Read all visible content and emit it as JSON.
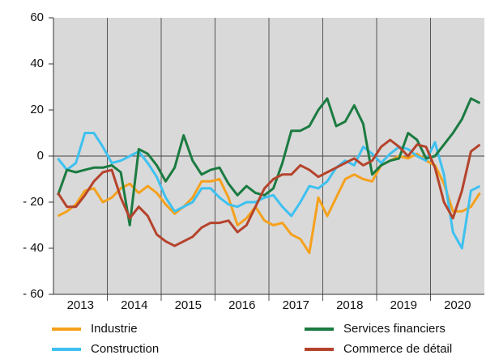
{
  "chart_data": {
    "type": "line",
    "categories": [
      "2013",
      "2014",
      "2015",
      "2016",
      "2017",
      "2018",
      "2019",
      "2020"
    ],
    "ylim": [
      -60,
      60
    ],
    "yticks": [
      {
        "value": 60,
        "label": "60"
      },
      {
        "value": 40,
        "label": "40"
      },
      {
        "value": 20,
        "label": "20"
      },
      0,
      {
        "value": -20,
        "label": "- 20"
      },
      {
        "value": -40,
        "label": "- 40"
      },
      {
        "value": -60,
        "label": "- 60"
      }
    ],
    "series": [
      {
        "name": "Industrie",
        "color": "#f5a11c",
        "values": [
          [
            -26,
            -24,
            -21,
            -15,
            -14,
            -20
          ],
          [
            -18,
            -14,
            -12,
            -16,
            -13,
            -16
          ],
          [
            -21,
            -25,
            -22,
            -18,
            -11,
            -11
          ],
          [
            -10,
            -18,
            -30,
            -27,
            -22,
            -28
          ],
          [
            -30,
            -29,
            -34,
            -36,
            -42,
            -18
          ],
          [
            -26,
            -18,
            -10,
            -8,
            -10,
            -11
          ],
          [
            -4,
            -2,
            0,
            -1,
            1,
            -2
          ],
          [
            -4,
            -12,
            -24,
            -24,
            -22,
            -16
          ]
        ]
      },
      {
        "name": "Construction",
        "color": "#3ec1f0",
        "values": [
          [
            -1,
            -6,
            -3,
            10,
            10,
            4
          ],
          [
            -3,
            -2,
            0,
            2,
            -3,
            -9
          ],
          [
            -18,
            -24,
            -22,
            -20,
            -14,
            -14
          ],
          [
            -18,
            -21,
            -22,
            -20,
            -20,
            -18
          ],
          [
            -17,
            -22,
            -26,
            -20,
            -13,
            -14
          ],
          [
            -11,
            -5,
            -2,
            -4,
            4,
            1
          ],
          [
            -3,
            1,
            4,
            3,
            0,
            -2
          ],
          [
            6,
            -8,
            -33,
            -40,
            -15,
            -13
          ]
        ]
      },
      {
        "name": "Services financiers",
        "color": "#1b7b41",
        "values": [
          [
            -17,
            -6,
            -7,
            -6,
            -5,
            -5
          ],
          [
            -4,
            -7,
            -30,
            3,
            1,
            -4
          ],
          [
            -11,
            -5,
            9,
            -2,
            -8,
            -6
          ],
          [
            -5,
            -12,
            -17,
            -13,
            -16,
            -17
          ],
          [
            -14,
            -3,
            11,
            11,
            13,
            20
          ],
          [
            25,
            13,
            15,
            22,
            14,
            -8
          ],
          [
            -4,
            -2,
            -1,
            10,
            7,
            -1
          ],
          [
            0,
            5,
            10,
            16,
            25,
            23
          ]
        ]
      },
      {
        "name": "Commerce de détail",
        "color": "#b5432c",
        "values": [
          [
            -16,
            -22,
            -22,
            -17,
            -11,
            -7
          ],
          [
            -6,
            -18,
            -27,
            -22,
            -26,
            -34
          ],
          [
            -37,
            -39,
            -37,
            -35,
            -31,
            -29
          ],
          [
            -29,
            -28,
            -33,
            -30,
            -22,
            -14
          ],
          [
            -10,
            -8,
            -8,
            -4,
            -6,
            -9
          ],
          [
            -7,
            -5,
            -3,
            -1,
            -4,
            -2
          ],
          [
            4,
            7,
            4,
            0,
            5,
            4
          ],
          [
            -5,
            -20,
            -27,
            -15,
            2,
            5
          ]
        ]
      }
    ]
  }
}
